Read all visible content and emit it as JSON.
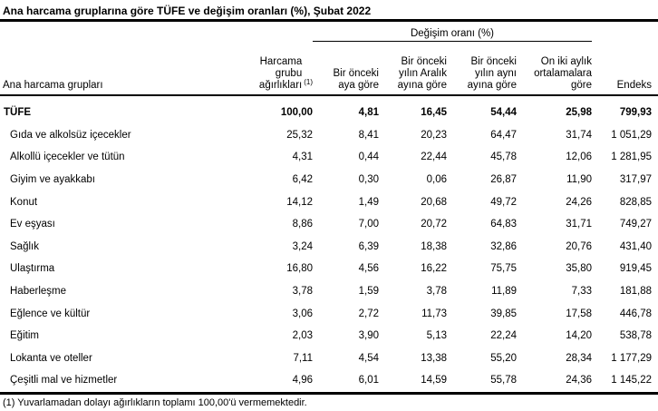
{
  "title": "Ana harcama gruplarına göre TÜFE ve değişim oranları (%), Şubat 2022",
  "table": {
    "change_group_header": "Değişim oranı (%)",
    "headers": {
      "main_groups": "Ana harcama grupları",
      "weights": "Harcama\ngrubu\nağırlıkları",
      "weights_ref": "(1)",
      "prev_month": "Bir önceki\naya göre",
      "prev_december": "Bir önceki\nyılın Aralık\nayına göre",
      "same_month_prev_year": "Bir önceki\nyılın aynı\nayına göre",
      "twelve_month_avg": "On iki aylık\nortalamalara\ngöre",
      "index": "Endeks"
    },
    "rows": [
      {
        "label": "TÜFE",
        "bold": true,
        "indent": false,
        "values": [
          "100,00",
          "4,81",
          "16,45",
          "54,44",
          "25,98",
          "799,93"
        ]
      },
      {
        "label": "Gıda ve alkolsüz içecekler",
        "bold": false,
        "indent": true,
        "values": [
          "25,32",
          "8,41",
          "20,23",
          "64,47",
          "31,74",
          "1 051,29"
        ]
      },
      {
        "label": "Alkollü içecekler ve tütün",
        "bold": false,
        "indent": true,
        "values": [
          "4,31",
          "0,44",
          "22,44",
          "45,78",
          "12,06",
          "1 281,95"
        ]
      },
      {
        "label": "Giyim ve ayakkabı",
        "bold": false,
        "indent": true,
        "values": [
          "6,42",
          "0,30",
          "0,06",
          "26,87",
          "11,90",
          "317,97"
        ]
      },
      {
        "label": "Konut",
        "bold": false,
        "indent": true,
        "values": [
          "14,12",
          "1,49",
          "20,68",
          "49,72",
          "24,26",
          "828,85"
        ]
      },
      {
        "label": "Ev eşyası",
        "bold": false,
        "indent": true,
        "values": [
          "8,86",
          "7,00",
          "20,72",
          "64,83",
          "31,71",
          "749,27"
        ]
      },
      {
        "label": "Sağlık",
        "bold": false,
        "indent": true,
        "values": [
          "3,24",
          "6,39",
          "18,38",
          "32,86",
          "20,76",
          "431,40"
        ]
      },
      {
        "label": "Ulaştırma",
        "bold": false,
        "indent": true,
        "values": [
          "16,80",
          "4,56",
          "16,22",
          "75,75",
          "35,80",
          "919,45"
        ]
      },
      {
        "label": "Haberleşme",
        "bold": false,
        "indent": true,
        "values": [
          "3,78",
          "1,59",
          "3,78",
          "11,89",
          "7,33",
          "181,88"
        ]
      },
      {
        "label": "Eğlence ve kültür",
        "bold": false,
        "indent": true,
        "values": [
          "3,06",
          "2,72",
          "11,73",
          "39,85",
          "17,58",
          "446,78"
        ]
      },
      {
        "label": "Eğitim",
        "bold": false,
        "indent": true,
        "values": [
          "2,03",
          "3,90",
          "5,13",
          "22,24",
          "14,20",
          "538,78"
        ]
      },
      {
        "label": "Lokanta ve oteller",
        "bold": false,
        "indent": true,
        "values": [
          "7,11",
          "4,54",
          "13,38",
          "55,20",
          "28,34",
          "1 177,29"
        ]
      },
      {
        "label": "Çeşitli mal ve hizmetler",
        "bold": false,
        "indent": true,
        "values": [
          "4,96",
          "6,01",
          "14,59",
          "55,78",
          "24,36",
          "1 145,22"
        ]
      }
    ]
  },
  "footnote": "(1) Yuvarlamadan dolayı ağırlıkların toplamı 100,00'ü vermemektedir."
}
